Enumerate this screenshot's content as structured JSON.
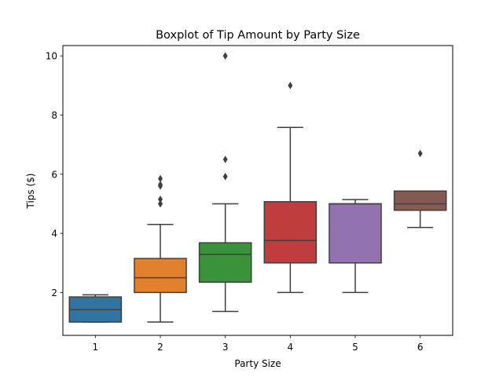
{
  "chart_data": {
    "type": "boxplot",
    "title": "Boxplot of Tip Amount by Party Size",
    "xlabel": "Party Size",
    "ylabel": "Tips ($)",
    "categories": [
      "1",
      "2",
      "3",
      "4",
      "5",
      "6"
    ],
    "ylim": [
      0.55,
      10.35
    ],
    "yticks": [
      2,
      4,
      6,
      8,
      10
    ],
    "grid": false,
    "boxes": [
      {
        "category": "1",
        "whisker_low": 1.0,
        "q1": 1.0,
        "median": 1.42,
        "q3": 1.85,
        "whisker_high": 1.92,
        "outliers": [],
        "color": "#3274a1"
      },
      {
        "category": "2",
        "whisker_low": 1.0,
        "q1": 2.0,
        "median": 2.5,
        "q3": 3.15,
        "whisker_high": 4.3,
        "outliers": [
          5.0,
          5.0,
          5.15,
          5.6,
          5.65,
          5.85
        ],
        "color": "#e1812c"
      },
      {
        "category": "3",
        "whisker_low": 1.36,
        "q1": 2.35,
        "median": 3.29,
        "q3": 3.68,
        "whisker_high": 5.0,
        "outliers": [
          5.92,
          6.5,
          10.0
        ],
        "color": "#3a923a"
      },
      {
        "category": "4",
        "whisker_low": 2.0,
        "q1": 3.0,
        "median": 3.76,
        "q3": 5.07,
        "whisker_high": 7.58,
        "outliers": [
          9.0
        ],
        "color": "#c03d3e"
      },
      {
        "category": "5",
        "whisker_low": 2.0,
        "q1": 3.0,
        "median": 5.0,
        "q3": 5.0,
        "whisker_high": 5.14,
        "outliers": [],
        "color": "#9372b2"
      },
      {
        "category": "6",
        "whisker_low": 4.2,
        "q1": 4.78,
        "median": 5.0,
        "q3": 5.43,
        "whisker_high": 5.43,
        "outliers": [
          6.7
        ],
        "color": "#845b53"
      }
    ]
  }
}
